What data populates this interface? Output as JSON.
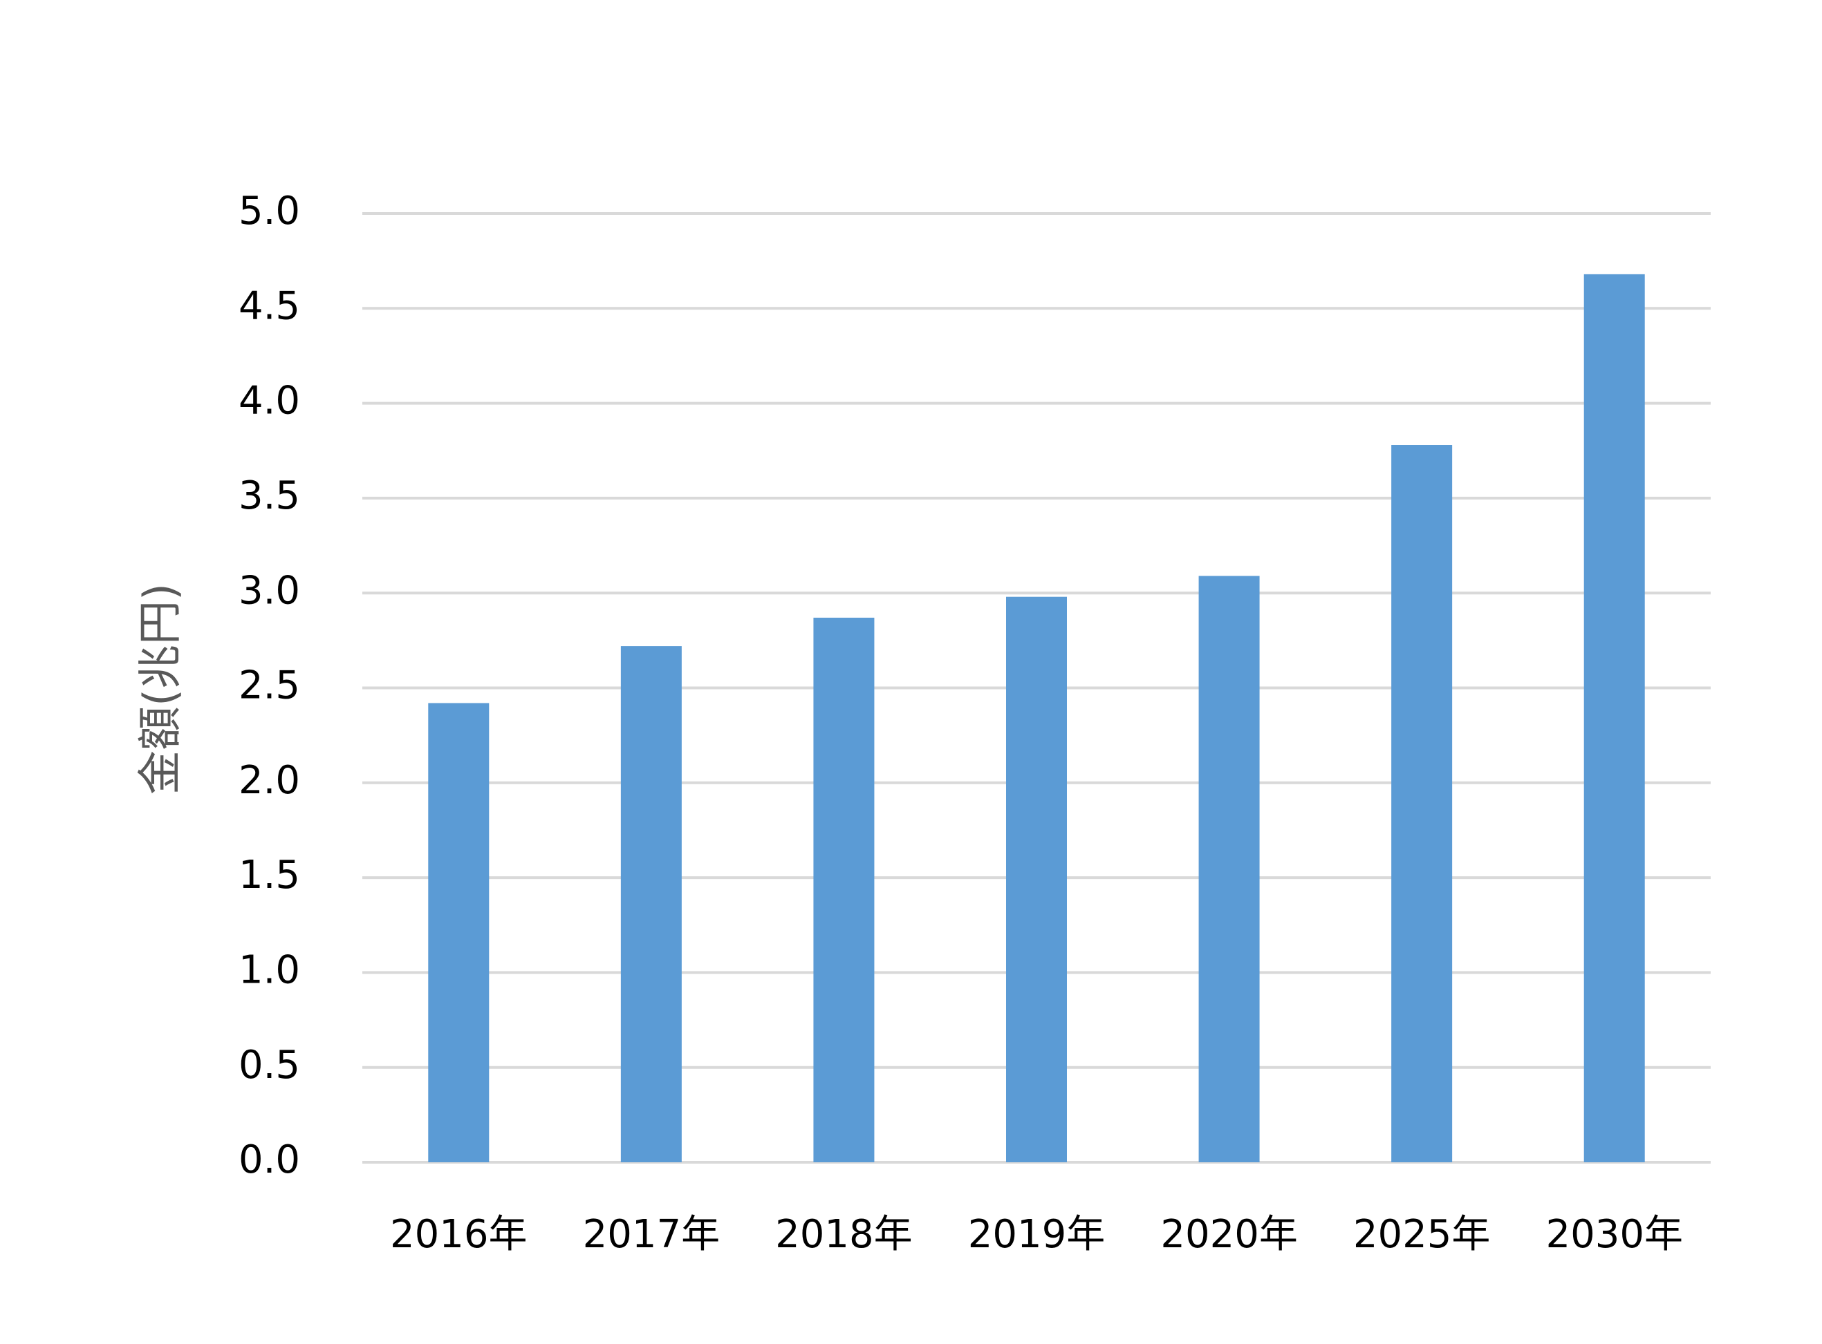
{
  "chart_data": {
    "type": "bar",
    "y_label": "金額(兆円)",
    "categories": [
      "2016年",
      "2017年",
      "2018年",
      "2019年",
      "2020年",
      "2025年",
      "2030年"
    ],
    "values": [
      2.42,
      2.72,
      2.87,
      2.98,
      3.09,
      3.78,
      4.68
    ],
    "color": "#5b9bd5",
    "ylim": [
      0,
      5
    ],
    "yticks": [
      {
        "value": 0,
        "label": "0.0"
      },
      0.5,
      {
        "value": 1,
        "label": "1.0"
      },
      1.5,
      {
        "value": 2,
        "label": "2.0"
      },
      2.5,
      {
        "value": 3,
        "label": "3.0"
      },
      3.5,
      {
        "value": 4,
        "label": "4.0"
      },
      4.5,
      {
        "value": 5,
        "label": "5.0"
      }
    ],
    "grid": true
  }
}
